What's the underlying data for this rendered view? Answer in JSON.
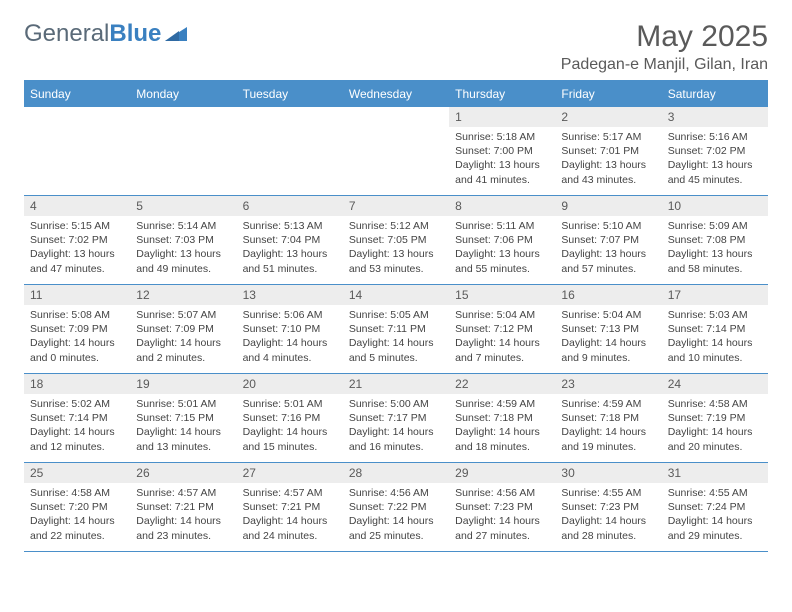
{
  "logo": {
    "text1": "General",
    "text2": "Blue"
  },
  "title": "May 2025",
  "location": "Padegan-e Manjil, Gilan, Iran",
  "colors": {
    "header_bg": "#4a8fc9",
    "header_text": "#ffffff",
    "daynum_bg": "#ededed",
    "rule": "#4a8fc9",
    "body_bg": "#ffffff",
    "text": "#444444",
    "title_text": "#5a5a5a"
  },
  "dow": [
    "Sunday",
    "Monday",
    "Tuesday",
    "Wednesday",
    "Thursday",
    "Friday",
    "Saturday"
  ],
  "weeks": [
    [
      null,
      null,
      null,
      null,
      {
        "n": "1",
        "sr": "5:18 AM",
        "ss": "7:00 PM",
        "dl": "13 hours and 41 minutes."
      },
      {
        "n": "2",
        "sr": "5:17 AM",
        "ss": "7:01 PM",
        "dl": "13 hours and 43 minutes."
      },
      {
        "n": "3",
        "sr": "5:16 AM",
        "ss": "7:02 PM",
        "dl": "13 hours and 45 minutes."
      }
    ],
    [
      {
        "n": "4",
        "sr": "5:15 AM",
        "ss": "7:02 PM",
        "dl": "13 hours and 47 minutes."
      },
      {
        "n": "5",
        "sr": "5:14 AM",
        "ss": "7:03 PM",
        "dl": "13 hours and 49 minutes."
      },
      {
        "n": "6",
        "sr": "5:13 AM",
        "ss": "7:04 PM",
        "dl": "13 hours and 51 minutes."
      },
      {
        "n": "7",
        "sr": "5:12 AM",
        "ss": "7:05 PM",
        "dl": "13 hours and 53 minutes."
      },
      {
        "n": "8",
        "sr": "5:11 AM",
        "ss": "7:06 PM",
        "dl": "13 hours and 55 minutes."
      },
      {
        "n": "9",
        "sr": "5:10 AM",
        "ss": "7:07 PM",
        "dl": "13 hours and 57 minutes."
      },
      {
        "n": "10",
        "sr": "5:09 AM",
        "ss": "7:08 PM",
        "dl": "13 hours and 58 minutes."
      }
    ],
    [
      {
        "n": "11",
        "sr": "5:08 AM",
        "ss": "7:09 PM",
        "dl": "14 hours and 0 minutes."
      },
      {
        "n": "12",
        "sr": "5:07 AM",
        "ss": "7:09 PM",
        "dl": "14 hours and 2 minutes."
      },
      {
        "n": "13",
        "sr": "5:06 AM",
        "ss": "7:10 PM",
        "dl": "14 hours and 4 minutes."
      },
      {
        "n": "14",
        "sr": "5:05 AM",
        "ss": "7:11 PM",
        "dl": "14 hours and 5 minutes."
      },
      {
        "n": "15",
        "sr": "5:04 AM",
        "ss": "7:12 PM",
        "dl": "14 hours and 7 minutes."
      },
      {
        "n": "16",
        "sr": "5:04 AM",
        "ss": "7:13 PM",
        "dl": "14 hours and 9 minutes."
      },
      {
        "n": "17",
        "sr": "5:03 AM",
        "ss": "7:14 PM",
        "dl": "14 hours and 10 minutes."
      }
    ],
    [
      {
        "n": "18",
        "sr": "5:02 AM",
        "ss": "7:14 PM",
        "dl": "14 hours and 12 minutes."
      },
      {
        "n": "19",
        "sr": "5:01 AM",
        "ss": "7:15 PM",
        "dl": "14 hours and 13 minutes."
      },
      {
        "n": "20",
        "sr": "5:01 AM",
        "ss": "7:16 PM",
        "dl": "14 hours and 15 minutes."
      },
      {
        "n": "21",
        "sr": "5:00 AM",
        "ss": "7:17 PM",
        "dl": "14 hours and 16 minutes."
      },
      {
        "n": "22",
        "sr": "4:59 AM",
        "ss": "7:18 PM",
        "dl": "14 hours and 18 minutes."
      },
      {
        "n": "23",
        "sr": "4:59 AM",
        "ss": "7:18 PM",
        "dl": "14 hours and 19 minutes."
      },
      {
        "n": "24",
        "sr": "4:58 AM",
        "ss": "7:19 PM",
        "dl": "14 hours and 20 minutes."
      }
    ],
    [
      {
        "n": "25",
        "sr": "4:58 AM",
        "ss": "7:20 PM",
        "dl": "14 hours and 22 minutes."
      },
      {
        "n": "26",
        "sr": "4:57 AM",
        "ss": "7:21 PM",
        "dl": "14 hours and 23 minutes."
      },
      {
        "n": "27",
        "sr": "4:57 AM",
        "ss": "7:21 PM",
        "dl": "14 hours and 24 minutes."
      },
      {
        "n": "28",
        "sr": "4:56 AM",
        "ss": "7:22 PM",
        "dl": "14 hours and 25 minutes."
      },
      {
        "n": "29",
        "sr": "4:56 AM",
        "ss": "7:23 PM",
        "dl": "14 hours and 27 minutes."
      },
      {
        "n": "30",
        "sr": "4:55 AM",
        "ss": "7:23 PM",
        "dl": "14 hours and 28 minutes."
      },
      {
        "n": "31",
        "sr": "4:55 AM",
        "ss": "7:24 PM",
        "dl": "14 hours and 29 minutes."
      }
    ]
  ],
  "labels": {
    "sunrise": "Sunrise: ",
    "sunset": "Sunset: ",
    "daylight": "Daylight: "
  }
}
